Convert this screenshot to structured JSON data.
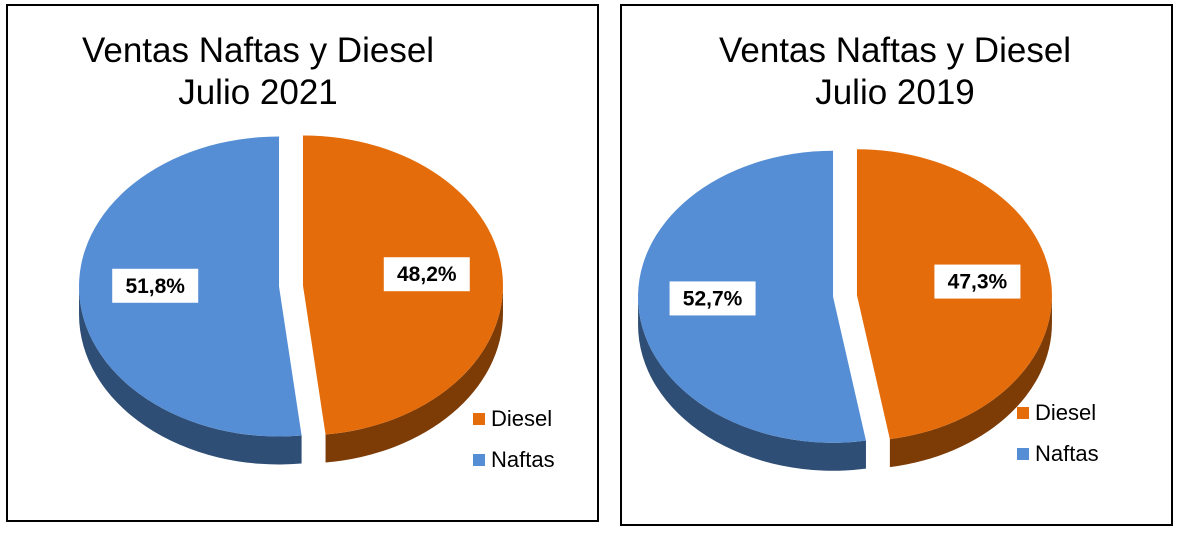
{
  "chart_data": [
    {
      "type": "pie",
      "title": [
        "Ventas Naftas y Diesel",
        "Julio 2021"
      ],
      "categories": [
        "Diesel",
        "Naftas"
      ],
      "values": [
        48.2,
        51.8
      ],
      "data_labels": [
        "48,2%",
        "51,8%"
      ],
      "colors": [
        "#E46C0A",
        "#558ED5"
      ],
      "legend": [
        {
          "label": "Diesel",
          "color": "#E46C0A"
        },
        {
          "label": "Naftas",
          "color": "#558ED5"
        }
      ],
      "legend_position": "bottom-right",
      "style": "3d-exploded"
    },
    {
      "type": "pie",
      "title": [
        "Ventas Naftas y Diesel",
        "Julio 2019"
      ],
      "categories": [
        "Diesel",
        "Naftas"
      ],
      "values": [
        47.3,
        52.7
      ],
      "data_labels": [
        "47,3%",
        "52,7%"
      ],
      "colors": [
        "#E46C0A",
        "#558ED5"
      ],
      "legend": [
        {
          "label": "Diesel",
          "color": "#E46C0A"
        },
        {
          "label": "Naftas",
          "color": "#558ED5"
        }
      ],
      "legend_position": "bottom-right",
      "style": "3d-exploded"
    }
  ]
}
